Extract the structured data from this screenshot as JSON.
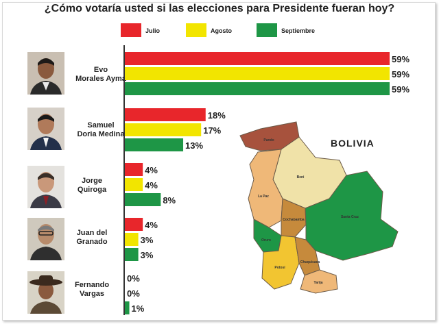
{
  "title": "¿Cómo votaría usted si las elecciones para Presidente fueran hoy?",
  "legend": [
    {
      "label": "Julio",
      "color": "#e8262b"
    },
    {
      "label": "Agosto",
      "color": "#f2e500"
    },
    {
      "label": "Septiembre",
      "color": "#1e9646"
    }
  ],
  "chart_data": {
    "type": "bar",
    "orientation": "horizontal",
    "title": "¿Cómo votaría usted si las elecciones para Presidente fueran hoy?",
    "categories": [
      [
        "Evo",
        "Morales Ayma"
      ],
      [
        "Samuel",
        "Doria Medina"
      ],
      [
        "Jorge",
        "Quiroga"
      ],
      [
        "Juan del",
        "Granado"
      ],
      [
        "Fernando",
        "Vargas"
      ]
    ],
    "series": [
      {
        "name": "Julio",
        "color": "#e8262b",
        "values": [
          59,
          18,
          4,
          4,
          0
        ]
      },
      {
        "name": "Agosto",
        "color": "#f2e500",
        "values": [
          59,
          17,
          4,
          3,
          0
        ]
      },
      {
        "name": "Septiembre",
        "color": "#1e9646",
        "values": [
          59,
          13,
          8,
          3,
          1
        ]
      }
    ],
    "value_suffix": "%",
    "xlim": [
      0,
      59
    ],
    "legend_position": "top"
  },
  "map": {
    "title": "BOLIVIA",
    "regions": [
      {
        "name": "Pando",
        "color": "#a7523d"
      },
      {
        "name": "Beni",
        "color": "#f0e2a8"
      },
      {
        "name": "La Paz",
        "color": "#efb878"
      },
      {
        "name": "Cochabamba",
        "color": "#c68a3c"
      },
      {
        "name": "Santa Cruz",
        "color": "#1e9646"
      },
      {
        "name": "Oruro",
        "color": "#1e9646"
      },
      {
        "name": "Potosí",
        "color": "#f2c531"
      },
      {
        "name": "Chuquisaca",
        "color": "#c68a3c"
      },
      {
        "name": "Tarija",
        "color": "#efb878"
      }
    ]
  },
  "photos": [
    {
      "name": "evo-photo-icon"
    },
    {
      "name": "samuel-photo-icon"
    },
    {
      "name": "jorge-photo-icon"
    },
    {
      "name": "juan-photo-icon"
    },
    {
      "name": "fernando-photo-icon"
    }
  ]
}
